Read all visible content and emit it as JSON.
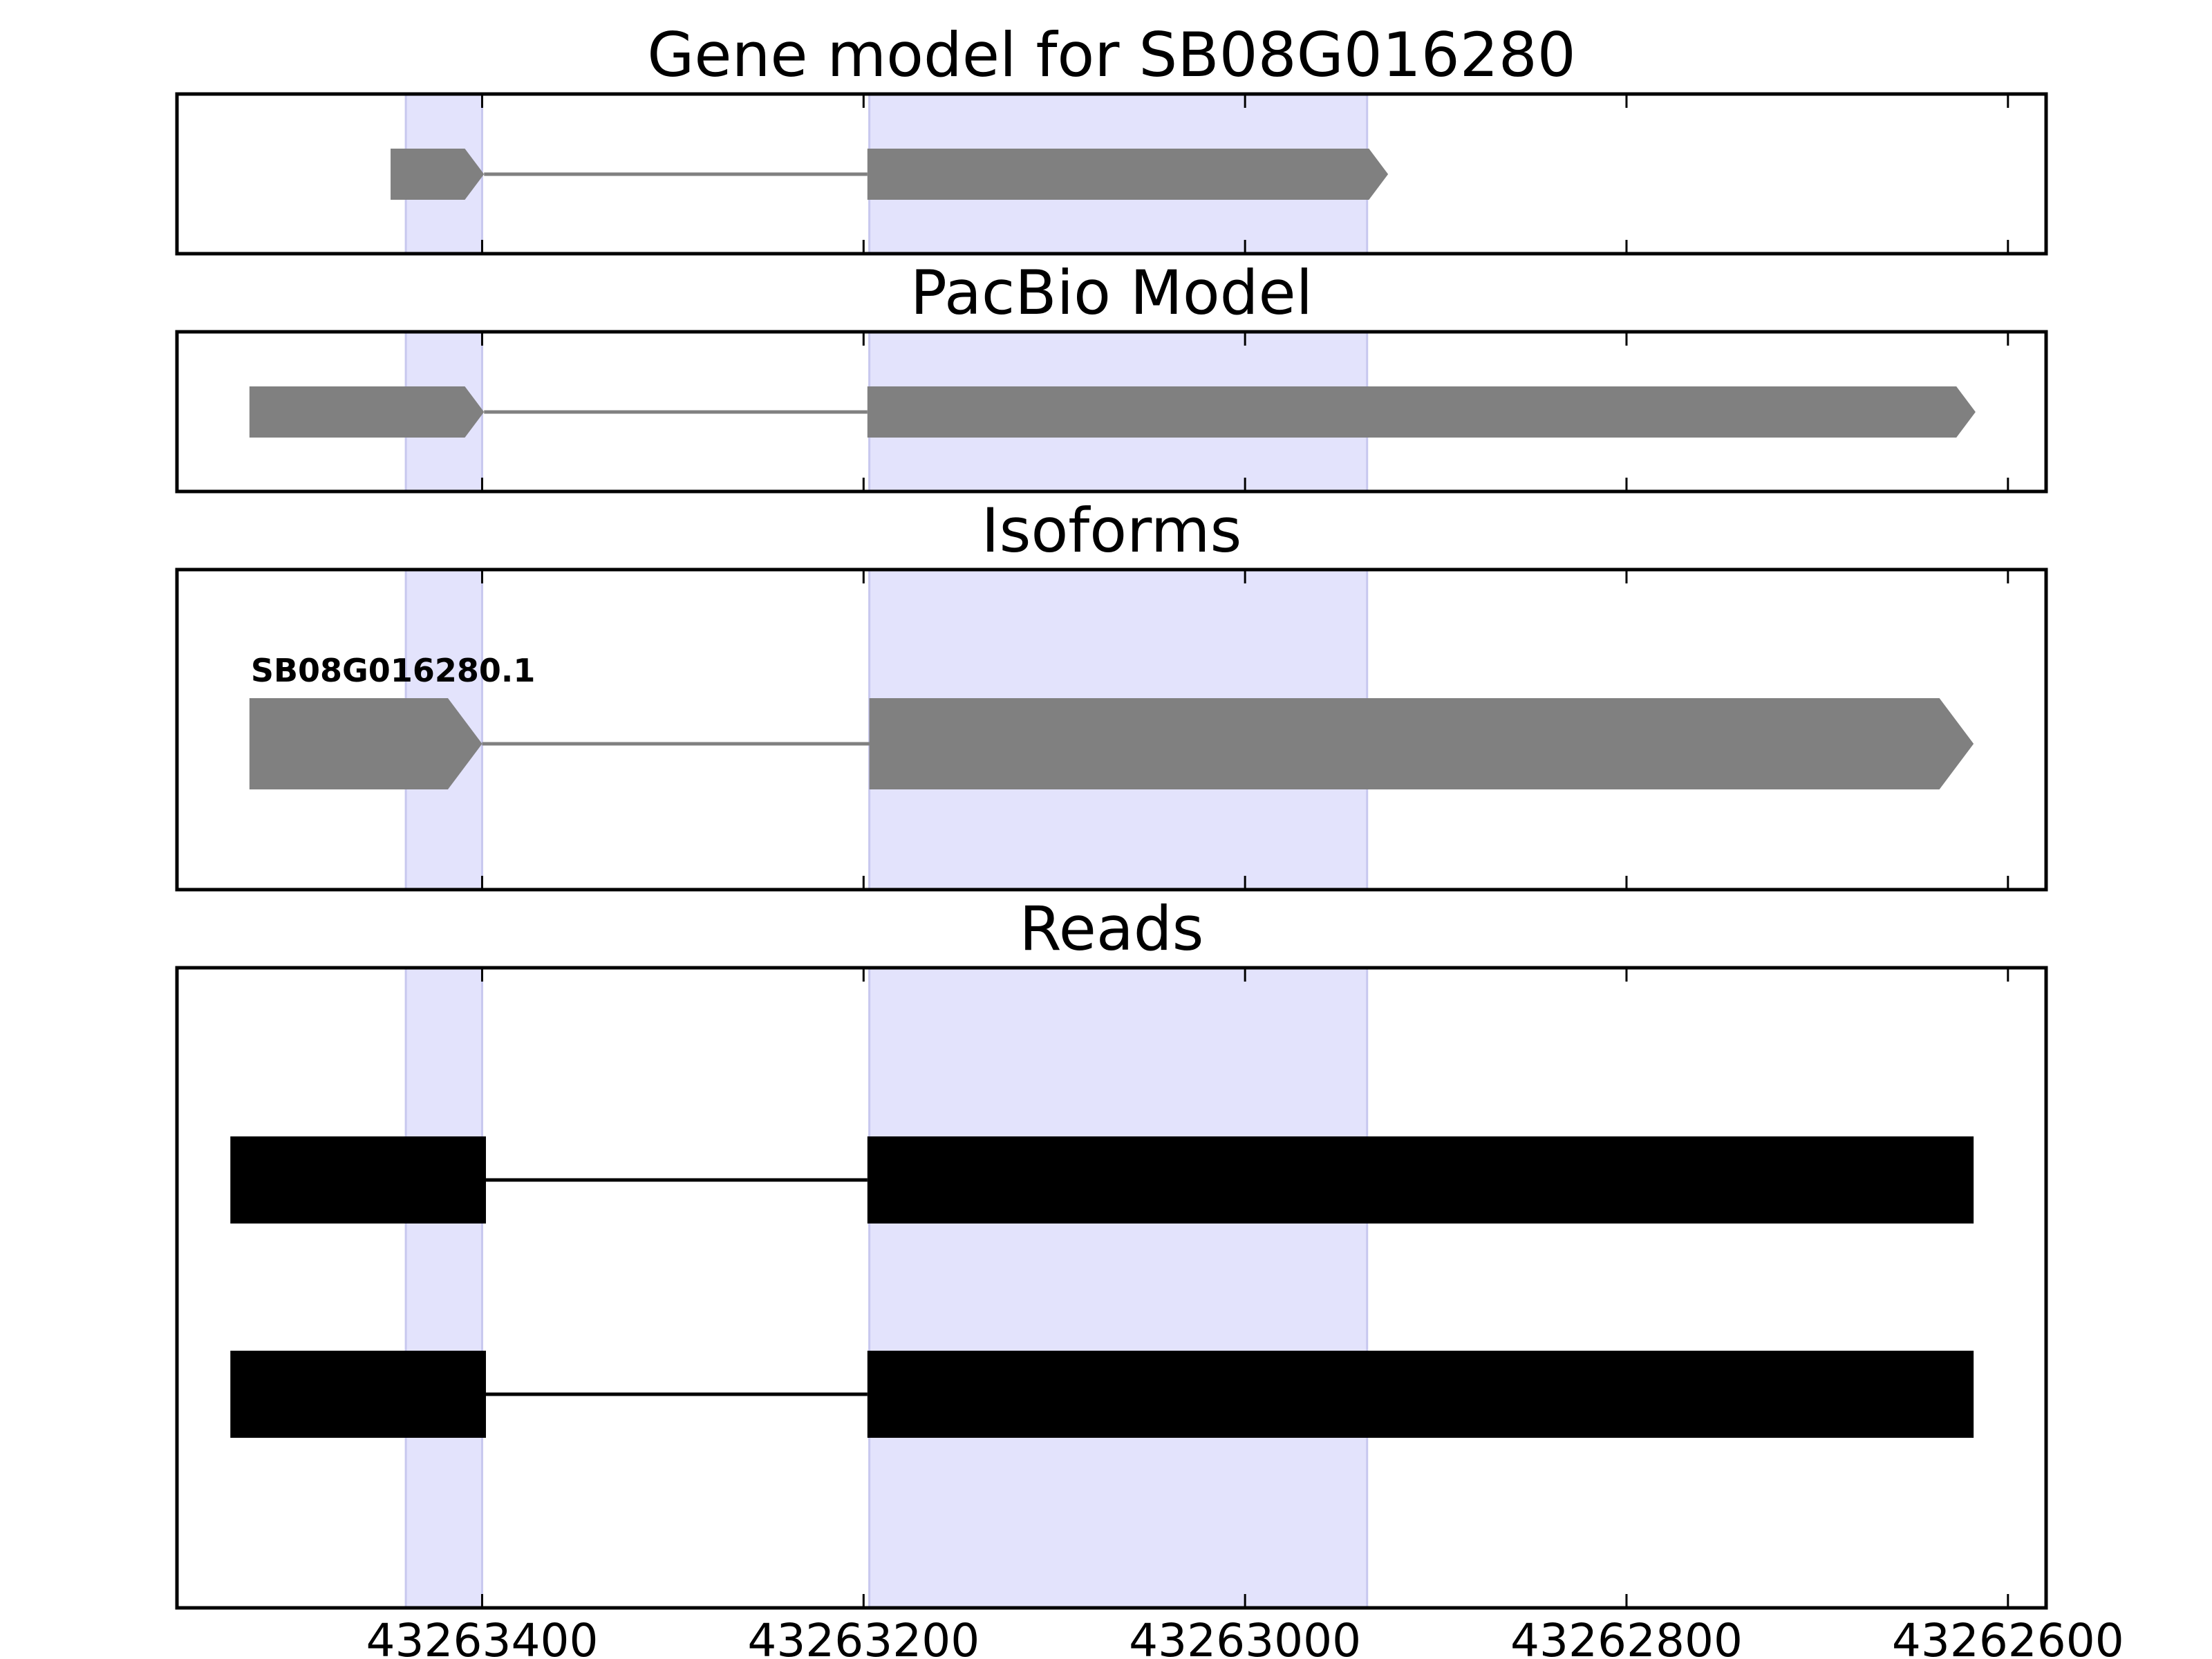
{
  "chart_data": {
    "type": "gene-track",
    "x_reversed": true,
    "xlim": [
      43263560,
      43262580
    ],
    "x_ticks": [
      43263400,
      43263200,
      43263000,
      43262800,
      43262600
    ],
    "x_tick_labels": [
      "43263400",
      "43263200",
      "43263000",
      "43262800",
      "43262600"
    ],
    "highlight_regions": [
      {
        "start": 43263440,
        "end": 43263400
      },
      {
        "start": 43263197,
        "end": 43262936
      }
    ],
    "colors": {
      "highlight": "#e3e3fc",
      "highlight_edge": "#c8c8ef",
      "model": "#808080",
      "read": "#000000",
      "axis": "#000000"
    },
    "panels": [
      {
        "title": "Gene model for SB08G016280",
        "features": [
          {
            "label": "",
            "exons": [
              [
                43263448,
                43263399
              ],
              [
                43263198,
                43262925
              ]
            ],
            "style": "arrow"
          }
        ]
      },
      {
        "title": "PacBio Model",
        "features": [
          {
            "label": "",
            "exons": [
              [
                43263522,
                43263399
              ],
              [
                43263198,
                43262617
              ]
            ],
            "style": "arrow"
          }
        ]
      },
      {
        "title": "Isoforms",
        "features": [
          {
            "label": "SB08G016280.1",
            "exons": [
              [
                43263522,
                43263400
              ],
              [
                43263197,
                43262618
              ]
            ],
            "style": "arrow"
          }
        ]
      },
      {
        "title": "Reads",
        "features": [
          {
            "label": "",
            "exons": [
              [
                43263532,
                43263398
              ],
              [
                43263198,
                43262618
              ]
            ],
            "style": "block"
          },
          {
            "label": "",
            "exons": [
              [
                43263532,
                43263398
              ],
              [
                43263198,
                43262618
              ]
            ],
            "style": "block"
          }
        ]
      }
    ]
  }
}
